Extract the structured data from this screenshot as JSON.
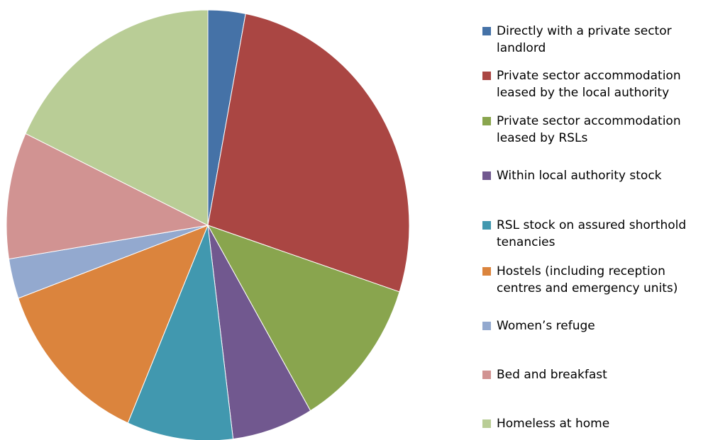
{
  "chart_data": {
    "type": "pie",
    "categories": [
      "Directly with a private sector landlord",
      "Private sector accommodation leased by the local authority",
      "Private sector accommodation leased by RSLs",
      "Within local authority stock",
      "RSL stock on assured shorthold tenancies",
      "Hostels (including reception centres and emergency units)",
      "Women’s refuge",
      "Bed and breakfast",
      "Homeless at home"
    ],
    "values": [
      3,
      27,
      11.5,
      6.5,
      8.5,
      13,
      3,
      9.5,
      18
    ],
    "colors": [
      "#4572a7",
      "#aa4643",
      "#89a54e",
      "#71588f",
      "#4198af",
      "#db843d",
      "#93a9cf",
      "#d19392",
      "#b9cd96"
    ],
    "legend": "right"
  }
}
